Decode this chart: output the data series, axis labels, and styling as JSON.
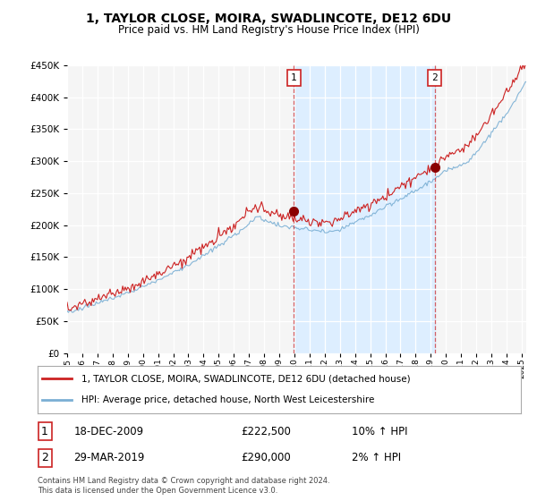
{
  "title": "1, TAYLOR CLOSE, MOIRA, SWADLINCOTE, DE12 6DU",
  "subtitle": "Price paid vs. HM Land Registry's House Price Index (HPI)",
  "ylim": [
    0,
    450000
  ],
  "xlim_start": 1995.0,
  "xlim_end": 2025.3,
  "sale1_date": 2009.96,
  "sale1_price": 222500,
  "sale1_label": "1",
  "sale2_date": 2019.25,
  "sale2_price": 290000,
  "sale2_label": "2",
  "hpi_color": "#7aafd4",
  "price_color": "#cc2222",
  "shade_color": "#ddeeff",
  "grid_color": "#cccccc",
  "plot_bg_color": "#f5f5f5",
  "legend_line1": "1, TAYLOR CLOSE, MOIRA, SWADLINCOTE, DE12 6DU (detached house)",
  "legend_line2": "HPI: Average price, detached house, North West Leicestershire",
  "table_row1_num": "1",
  "table_row1_date": "18-DEC-2009",
  "table_row1_price": "£222,500",
  "table_row1_hpi": "10% ↑ HPI",
  "table_row2_num": "2",
  "table_row2_date": "29-MAR-2019",
  "table_row2_price": "£290,000",
  "table_row2_hpi": "2% ↑ HPI",
  "footer": "Contains HM Land Registry data © Crown copyright and database right 2024.\nThis data is licensed under the Open Government Licence v3.0.",
  "background_color": "#ffffff"
}
